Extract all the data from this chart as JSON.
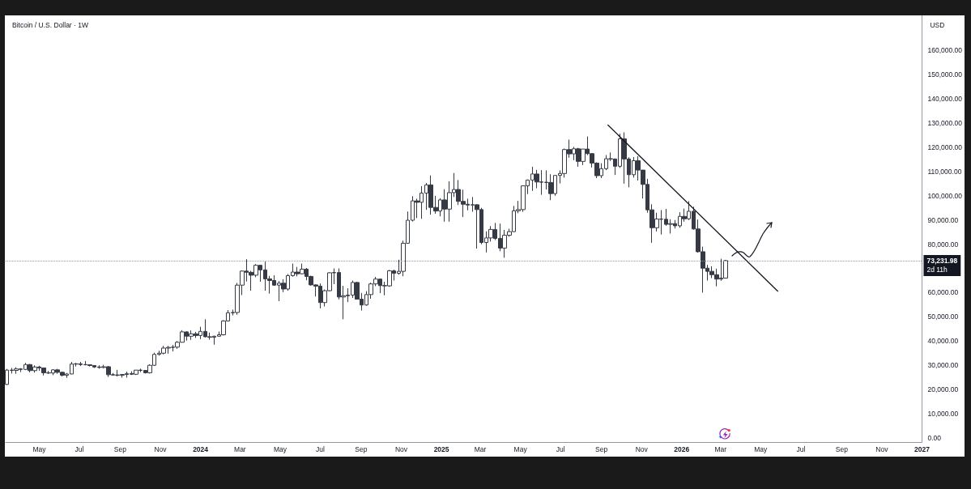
{
  "chart_data": {
    "type": "candlestick",
    "title": "Bitcoin / U.S. Dollar · 1W",
    "ylabel": "USD",
    "color": "#363a45",
    "marker": "none",
    "line_style": "solid",
    "xlim": [
      "2023-03-11",
      "2027-01-01"
    ],
    "xticks": [
      {
        "value": "2023-05-01",
        "label": "May"
      },
      {
        "value": "2023-07-01",
        "label": "Jul"
      },
      {
        "value": "2023-09-01",
        "label": "Sep"
      },
      {
        "value": "2023-11-01",
        "label": "Nov"
      },
      {
        "value": "2024-01-01",
        "label": "2024"
      },
      {
        "value": "2024-03-01",
        "label": "Mar"
      },
      {
        "value": "2024-05-01",
        "label": "May"
      },
      {
        "value": "2024-07-01",
        "label": "Jul"
      },
      {
        "value": "2024-09-01",
        "label": "Sep"
      },
      {
        "value": "2024-11-01",
        "label": "Nov"
      },
      {
        "value": "2025-01-01",
        "label": "2025"
      },
      {
        "value": "2025-03-01",
        "label": "Mar"
      },
      {
        "value": "2025-05-01",
        "label": "May"
      },
      {
        "value": "2025-07-01",
        "label": "Jul"
      },
      {
        "value": "2025-09-01",
        "label": "Sep"
      },
      {
        "value": "2025-11-01",
        "label": "Nov"
      },
      {
        "value": "2026-01-01",
        "label": "2026"
      },
      {
        "value": "2026-03-01",
        "label": "Mar"
      },
      {
        "value": "2026-05-01",
        "label": "May"
      },
      {
        "value": "2026-07-01",
        "label": "Jul"
      },
      {
        "value": "2026-09-01",
        "label": "Sep"
      },
      {
        "value": "2026-11-01",
        "label": "Nov"
      },
      {
        "value": "2027-01-01",
        "label": "2027"
      }
    ],
    "ylim": [
      -1700,
      174500
    ],
    "yticks": [
      {
        "value": 0,
        "label": "0.00"
      },
      {
        "value": 10000,
        "label": "10,000.00"
      },
      {
        "value": 20000,
        "label": "20,000.00"
      },
      {
        "value": 30000,
        "label": "30,000.00"
      },
      {
        "value": 40000,
        "label": "40,000.00"
      },
      {
        "value": 50000,
        "label": "50,000.00"
      },
      {
        "value": 60000,
        "label": "60,000.00"
      },
      {
        "value": 80000,
        "label": "80,000.00"
      },
      {
        "value": 90000,
        "label": "90,000.00"
      },
      {
        "value": 100000,
        "label": "100,000.00"
      },
      {
        "value": 110000,
        "label": "110,000.00"
      },
      {
        "value": 120000,
        "label": "120,000.00"
      },
      {
        "value": 130000,
        "label": "130,000.00"
      },
      {
        "value": 140000,
        "label": "140,000.00"
      },
      {
        "value": 150000,
        "label": "150,000.00"
      },
      {
        "value": 160000,
        "label": "160,000.00"
      }
    ],
    "ref_lines": [
      {
        "axis": "y",
        "value": 73231.98,
        "label": "73,231.98",
        "line_style": "dotted",
        "color": "#9598a1"
      }
    ],
    "annotations": [
      "2d 11h"
    ],
    "x": [
      "2023-03-13",
      "2023-03-20",
      "2023-03-27",
      "2023-04-03",
      "2023-04-10",
      "2023-04-17",
      "2023-04-24",
      "2023-05-01",
      "2023-05-08",
      "2023-05-15",
      "2023-05-22",
      "2023-05-29",
      "2023-06-05",
      "2023-06-12",
      "2023-06-19",
      "2023-06-26",
      "2023-07-03",
      "2023-07-10",
      "2023-07-17",
      "2023-07-24",
      "2023-07-31",
      "2023-08-07",
      "2023-08-14",
      "2023-08-21",
      "2023-08-28",
      "2023-09-04",
      "2023-09-11",
      "2023-09-18",
      "2023-09-25",
      "2023-10-02",
      "2023-10-09",
      "2023-10-16",
      "2023-10-23",
      "2023-10-30",
      "2023-11-06",
      "2023-11-13",
      "2023-11-20",
      "2023-11-27",
      "2023-12-04",
      "2023-12-11",
      "2023-12-18",
      "2023-12-25",
      "2024-01-01",
      "2024-01-08",
      "2024-01-15",
      "2024-01-22",
      "2024-01-29",
      "2024-02-05",
      "2024-02-12",
      "2024-02-19",
      "2024-02-26",
      "2024-03-04",
      "2024-03-11",
      "2024-03-18",
      "2024-03-25",
      "2024-04-01",
      "2024-04-08",
      "2024-04-15",
      "2024-04-22",
      "2024-04-29",
      "2024-05-06",
      "2024-05-13",
      "2024-05-20",
      "2024-05-27",
      "2024-06-03",
      "2024-06-10",
      "2024-06-17",
      "2024-06-24",
      "2024-07-01",
      "2024-07-08",
      "2024-07-15",
      "2024-07-22",
      "2024-07-29",
      "2024-08-05",
      "2024-08-12",
      "2024-08-19",
      "2024-08-26",
      "2024-09-02",
      "2024-09-09",
      "2024-09-16",
      "2024-09-23",
      "2024-09-30",
      "2024-10-07",
      "2024-10-14",
      "2024-10-21",
      "2024-10-28",
      "2024-11-04",
      "2024-11-11",
      "2024-11-18",
      "2024-11-25",
      "2024-12-02",
      "2024-12-09",
      "2024-12-16",
      "2024-12-23",
      "2024-12-30",
      "2025-01-06",
      "2025-01-13",
      "2025-01-20",
      "2025-01-27",
      "2025-02-03",
      "2025-02-10",
      "2025-02-17",
      "2025-02-24",
      "2025-03-03",
      "2025-03-10",
      "2025-03-17",
      "2025-03-24",
      "2025-03-31",
      "2025-04-07",
      "2025-04-14",
      "2025-04-21",
      "2025-04-28",
      "2025-05-05",
      "2025-05-12",
      "2025-05-19",
      "2025-05-26",
      "2025-06-02",
      "2025-06-09",
      "2025-06-16",
      "2025-06-23",
      "2025-06-30",
      "2025-07-07",
      "2025-07-14",
      "2025-07-21",
      "2025-07-28",
      "2025-08-04",
      "2025-08-11",
      "2025-08-18",
      "2025-08-25",
      "2025-09-01",
      "2025-09-08",
      "2025-09-15",
      "2025-09-22",
      "2025-09-29",
      "2025-10-06",
      "2025-10-13",
      "2025-10-20",
      "2025-10-27",
      "2025-11-03",
      "2025-11-10",
      "2025-11-17",
      "2025-11-24",
      "2025-12-01",
      "2025-12-08",
      "2025-12-15",
      "2025-12-22",
      "2025-12-29",
      "2026-01-05",
      "2026-01-12",
      "2026-01-19",
      "2026-01-26",
      "2026-02-02",
      "2026-02-09",
      "2026-02-16",
      "2026-02-23",
      "2026-03-02",
      "2026-03-09"
    ],
    "ohlc": [
      [
        22100,
        28500,
        21900,
        28000
      ],
      [
        28000,
        28900,
        26600,
        27900
      ],
      [
        27900,
        29200,
        26500,
        28500
      ],
      [
        28500,
        28800,
        27200,
        28300
      ],
      [
        28300,
        31000,
        28000,
        30300
      ],
      [
        30300,
        30500,
        27100,
        27800
      ],
      [
        27800,
        30000,
        27000,
        29300
      ],
      [
        29300,
        29800,
        27700,
        28900
      ],
      [
        28900,
        28900,
        25800,
        26900
      ],
      [
        26900,
        27700,
        26400,
        26800
      ],
      [
        26800,
        28400,
        25900,
        28100
      ],
      [
        28100,
        28500,
        26500,
        27100
      ],
      [
        27100,
        27400,
        25400,
        25900
      ],
      [
        25900,
        26800,
        24800,
        26400
      ],
      [
        26400,
        31400,
        26300,
        30500
      ],
      [
        30500,
        31000,
        29500,
        30600
      ],
      [
        30600,
        31400,
        29700,
        30300
      ],
      [
        30300,
        31800,
        30000,
        30200
      ],
      [
        30200,
        30400,
        29500,
        29900
      ],
      [
        29900,
        30000,
        28900,
        29300
      ],
      [
        29300,
        30000,
        28600,
        29100
      ],
      [
        29100,
        30200,
        28800,
        29400
      ],
      [
        29400,
        29700,
        25200,
        26100
      ],
      [
        26100,
        26800,
        25800,
        26000
      ],
      [
        26000,
        28100,
        25400,
        25900
      ],
      [
        25900,
        26400,
        24900,
        26200
      ],
      [
        26200,
        27400,
        24900,
        26600
      ],
      [
        26600,
        27500,
        26000,
        26300
      ],
      [
        26300,
        28000,
        26000,
        28000
      ],
      [
        28000,
        28600,
        27200,
        27900
      ],
      [
        27900,
        28000,
        26600,
        26900
      ],
      [
        26900,
        30400,
        26600,
        30000
      ],
      [
        30000,
        35200,
        29700,
        34500
      ],
      [
        34500,
        36000,
        34000,
        35000
      ],
      [
        35000,
        38000,
        34500,
        37100
      ],
      [
        37100,
        38000,
        34800,
        37400
      ],
      [
        37400,
        38400,
        35700,
        37500
      ],
      [
        37500,
        40000,
        36800,
        39500
      ],
      [
        39500,
        44500,
        39400,
        43800
      ],
      [
        43800,
        44000,
        40200,
        42000
      ],
      [
        42000,
        44400,
        40500,
        43000
      ],
      [
        43000,
        43800,
        41300,
        42300
      ],
      [
        42300,
        45900,
        40800,
        44000
      ],
      [
        44000,
        49000,
        41500,
        41800
      ],
      [
        41800,
        43500,
        40600,
        41600
      ],
      [
        41600,
        42200,
        38500,
        42000
      ],
      [
        42000,
        43900,
        41800,
        42600
      ],
      [
        42600,
        48600,
        42300,
        48300
      ],
      [
        48300,
        52800,
        48300,
        51700
      ],
      [
        51700,
        53000,
        50600,
        51800
      ],
      [
        51800,
        64000,
        50900,
        63100
      ],
      [
        63100,
        69200,
        59000,
        68900
      ],
      [
        68900,
        73800,
        64600,
        68400
      ],
      [
        68400,
        69000,
        60800,
        67200
      ],
      [
        67200,
        71800,
        66400,
        71300
      ],
      [
        71300,
        71300,
        64500,
        69400
      ],
      [
        69400,
        72800,
        60800,
        65700
      ],
      [
        65700,
        66900,
        59600,
        65000
      ],
      [
        65000,
        67200,
        62800,
        63100
      ],
      [
        63100,
        64800,
        56500,
        63900
      ],
      [
        63900,
        65500,
        60200,
        61500
      ],
      [
        61500,
        67700,
        60800,
        67000
      ],
      [
        67000,
        72000,
        66600,
        68500
      ],
      [
        68500,
        70600,
        66700,
        67800
      ],
      [
        67800,
        72000,
        67600,
        69700
      ],
      [
        69700,
        70200,
        65100,
        66700
      ],
      [
        66700,
        67000,
        62900,
        63200
      ],
      [
        63200,
        63400,
        58400,
        62700
      ],
      [
        62700,
        63800,
        53500,
        55900
      ],
      [
        55900,
        61300,
        54300,
        60800
      ],
      [
        60800,
        68400,
        60600,
        68200
      ],
      [
        68200,
        70000,
        63500,
        68300
      ],
      [
        68300,
        70000,
        57200,
        58200
      ],
      [
        58200,
        62800,
        49000,
        58700
      ],
      [
        58700,
        61800,
        56100,
        59000
      ],
      [
        59000,
        65000,
        57800,
        64200
      ],
      [
        64200,
        64500,
        57200,
        57300
      ],
      [
        57300,
        59800,
        52600,
        54900
      ],
      [
        54900,
        60600,
        54600,
        59200
      ],
      [
        59200,
        64100,
        57500,
        63600
      ],
      [
        63600,
        66500,
        62700,
        65600
      ],
      [
        65600,
        65700,
        59800,
        62900
      ],
      [
        62900,
        64500,
        58900,
        62800
      ],
      [
        62800,
        69400,
        62400,
        69000
      ],
      [
        69000,
        69500,
        65000,
        68000
      ],
      [
        68000,
        73600,
        67400,
        68800
      ],
      [
        68800,
        81500,
        66800,
        80400
      ],
      [
        80400,
        93500,
        80200,
        89900
      ],
      [
        89900,
        99800,
        89400,
        97900
      ],
      [
        97900,
        98800,
        90800,
        97300
      ],
      [
        97300,
        104000,
        90500,
        101100
      ],
      [
        101100,
        105300,
        94200,
        104500
      ],
      [
        104500,
        108400,
        92200,
        95200
      ],
      [
        95200,
        100000,
        92600,
        93700
      ],
      [
        93700,
        99000,
        91500,
        98300
      ],
      [
        98300,
        102700,
        89300,
        94500
      ],
      [
        94500,
        106000,
        89300,
        101300
      ],
      [
        101300,
        109400,
        99500,
        102600
      ],
      [
        102600,
        106500,
        96200,
        97700
      ],
      [
        97700,
        102500,
        91200,
        96500
      ],
      [
        96500,
        98800,
        94000,
        96200
      ],
      [
        96200,
        99500,
        93400,
        96300
      ],
      [
        96300,
        96500,
        78200,
        94300
      ],
      [
        94300,
        95000,
        80000,
        80700
      ],
      [
        80700,
        85300,
        76600,
        82600
      ],
      [
        82600,
        87500,
        81100,
        86100
      ],
      [
        86100,
        88800,
        81700,
        82400
      ],
      [
        82400,
        88500,
        77100,
        78400
      ],
      [
        78400,
        85900,
        74400,
        83700
      ],
      [
        83700,
        86400,
        83100,
        85200
      ],
      [
        85200,
        95800,
        85100,
        93800
      ],
      [
        93800,
        97900,
        92800,
        94300
      ],
      [
        94300,
        104300,
        93400,
        104100
      ],
      [
        104100,
        106700,
        100700,
        106500
      ],
      [
        106500,
        112000,
        102000,
        109000
      ],
      [
        109000,
        110700,
        103100,
        105700
      ],
      [
        105700,
        110600,
        100400,
        105600
      ],
      [
        105600,
        110500,
        102600,
        105500
      ],
      [
        105500,
        108900,
        98200,
        100900
      ],
      [
        100900,
        108500,
        100000,
        108400
      ],
      [
        108400,
        110500,
        105100,
        109200
      ],
      [
        109200,
        119500,
        107500,
        119100
      ],
      [
        119100,
        123200,
        115700,
        117300
      ],
      [
        117300,
        120200,
        114700,
        119400
      ],
      [
        119400,
        119800,
        112000,
        114200
      ],
      [
        114200,
        119300,
        112700,
        119300
      ],
      [
        119300,
        124500,
        116800,
        117400
      ],
      [
        117400,
        117600,
        111700,
        113500
      ],
      [
        113500,
        113800,
        107300,
        108300
      ],
      [
        108300,
        113400,
        107300,
        111200
      ],
      [
        111200,
        116800,
        110600,
        115300
      ],
      [
        115300,
        117900,
        114400,
        115200
      ],
      [
        115200,
        115400,
        108600,
        112200
      ],
      [
        112200,
        125600,
        111500,
        123500
      ],
      [
        123500,
        126200,
        105000,
        115200
      ],
      [
        115200,
        115900,
        103500,
        108700
      ],
      [
        108700,
        116000,
        107500,
        114500
      ],
      [
        114500,
        116300,
        106300,
        110600
      ],
      [
        110600,
        110700,
        98900,
        104700
      ],
      [
        104700,
        107000,
        93000,
        94200
      ],
      [
        94200,
        96500,
        80600,
        86800
      ],
      [
        86800,
        93000,
        85300,
        90400
      ],
      [
        90400,
        94100,
        84000,
        90300
      ],
      [
        90300,
        94600,
        87600,
        88200
      ],
      [
        88200,
        90300,
        84400,
        88500
      ],
      [
        88500,
        90000,
        86500,
        87600
      ],
      [
        87600,
        93200,
        86800,
        91500
      ],
      [
        91500,
        94700,
        89300,
        90500
      ],
      [
        90500,
        97800,
        90000,
        93600
      ],
      [
        93600,
        95500,
        86000,
        86300
      ],
      [
        86300,
        90200,
        76500,
        76900
      ],
      [
        76900,
        79000,
        60000,
        70100
      ],
      [
        70100,
        71500,
        65000,
        68800
      ],
      [
        68800,
        70900,
        66000,
        67400
      ],
      [
        67400,
        69900,
        62600,
        65600
      ],
      [
        65600,
        74000,
        64900,
        66000
      ],
      [
        66000,
        73500,
        65800,
        73231.98
      ]
    ],
    "series": [
      {
        "type": "line",
        "x": [
          "2025-09-11",
          "2026-05-27"
        ],
        "values": [
          129200,
          60600
        ],
        "color": "#131722"
      }
    ]
  }
}
